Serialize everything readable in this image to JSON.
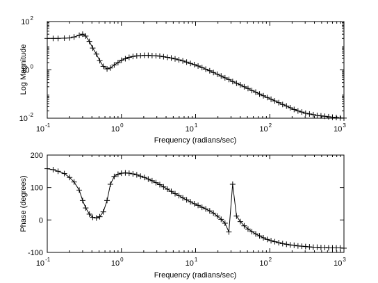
{
  "chart_data": [
    {
      "type": "line",
      "xlabel": "Frequency (radians/sec)",
      "ylabel": "Log Magnitude",
      "xscale": "log",
      "yscale": "log",
      "xlim": [
        0.1,
        1000
      ],
      "ylim": [
        0.01,
        100
      ],
      "x_ticks": [
        {
          "base": "10",
          "exp": "-1",
          "value": 0.1
        },
        {
          "base": "10",
          "exp": "0",
          "value": 1
        },
        {
          "base": "10",
          "exp": "1",
          "value": 10
        },
        {
          "base": "10",
          "exp": "2",
          "value": 100
        },
        {
          "base": "10",
          "exp": "3",
          "value": 1000
        }
      ],
      "y_ticks": [
        {
          "base": "10",
          "exp": "-2",
          "value": 0.01
        },
        {
          "base": "10",
          "exp": "0",
          "value": 1
        },
        {
          "base": "10",
          "exp": "2",
          "value": 100
        }
      ],
      "grid": false,
      "marker": "+",
      "series": [
        {
          "color": "#000000",
          "x": [
            0.1,
            0.12,
            0.14,
            0.17,
            0.2,
            0.23,
            0.27,
            0.3,
            0.33,
            0.37,
            0.41,
            0.46,
            0.51,
            0.57,
            0.64,
            0.71,
            0.8,
            0.9,
            1.0,
            1.13,
            1.27,
            1.43,
            1.61,
            1.81,
            2.04,
            2.3,
            2.59,
            2.92,
            3.29,
            3.7,
            4.17,
            4.7,
            5.29,
            5.96,
            6.72,
            7.57,
            8.53,
            9.6,
            10.8,
            12.2,
            13.7,
            15.5,
            17.4,
            19.6,
            22.1,
            24.9,
            28.1,
            31.6,
            35.6,
            40.1,
            45.2,
            50.9,
            57.4,
            64.6,
            72.8,
            82.0,
            92.4,
            104,
            117,
            132,
            149,
            168,
            189,
            213,
            240,
            270,
            304,
            343,
            386,
            435,
            490,
            552,
            621,
            700,
            789,
            888,
            1000
          ],
          "y": [
            20,
            20,
            20,
            20.5,
            21,
            23,
            27,
            30,
            25,
            15,
            8,
            4.5,
            2.4,
            1.4,
            1.1,
            1.2,
            1.6,
            2.0,
            2.5,
            2.9,
            3.3,
            3.6,
            3.8,
            3.9,
            4.0,
            4.0,
            3.9,
            3.85,
            3.7,
            3.5,
            3.3,
            3.1,
            2.85,
            2.6,
            2.35,
            2.1,
            1.85,
            1.65,
            1.45,
            1.25,
            1.07,
            0.92,
            0.78,
            0.66,
            0.56,
            0.47,
            0.4,
            0.33,
            0.28,
            0.24,
            0.2,
            0.17,
            0.14,
            0.12,
            0.1,
            0.085,
            0.072,
            0.061,
            0.052,
            0.044,
            0.037,
            0.032,
            0.027,
            0.023,
            0.02,
            0.018,
            0.016,
            0.015,
            0.014,
            0.013,
            0.0125,
            0.012,
            0.0115,
            0.011,
            0.0107,
            0.0103,
            0.0101
          ]
        }
      ]
    },
    {
      "type": "line",
      "xlabel": "Frequency (radians/sec)",
      "ylabel": "Phase (degrees)",
      "xscale": "log",
      "yscale": "linear",
      "xlim": [
        0.1,
        1000
      ],
      "ylim": [
        -100,
        200
      ],
      "x_ticks": [
        {
          "base": "10",
          "exp": "-1",
          "value": 0.1
        },
        {
          "base": "10",
          "exp": "0",
          "value": 1
        },
        {
          "base": "10",
          "exp": "1",
          "value": 10
        },
        {
          "base": "10",
          "exp": "2",
          "value": 100
        },
        {
          "base": "10",
          "exp": "3",
          "value": 1000
        }
      ],
      "y_ticks": [
        {
          "label": "-100",
          "value": -100
        },
        {
          "label": "0",
          "value": 0
        },
        {
          "label": "100",
          "value": 100
        },
        {
          "label": "200",
          "value": 200
        }
      ],
      "grid": false,
      "marker": "+",
      "series": [
        {
          "color": "#000000",
          "x": [
            0.1,
            0.12,
            0.14,
            0.17,
            0.2,
            0.23,
            0.27,
            0.3,
            0.33,
            0.37,
            0.41,
            0.46,
            0.51,
            0.57,
            0.64,
            0.71,
            0.8,
            0.9,
            1.0,
            1.13,
            1.27,
            1.43,
            1.61,
            1.81,
            2.04,
            2.3,
            2.59,
            2.92,
            3.29,
            3.7,
            4.17,
            4.7,
            5.29,
            5.96,
            6.72,
            7.57,
            8.53,
            9.6,
            10.8,
            12.2,
            13.7,
            15.5,
            17.4,
            19.6,
            22.1,
            24.9,
            28.1,
            31.6,
            35.6,
            40.1,
            45.2,
            50.9,
            57.4,
            64.6,
            72.8,
            82.0,
            92.4,
            104,
            117,
            132,
            149,
            168,
            189,
            213,
            240,
            270,
            304,
            343,
            386,
            435,
            490,
            552,
            621,
            700,
            789,
            888,
            1000
          ],
          "y": [
            158,
            155,
            150,
            143,
            131,
            117,
            92,
            60,
            37,
            18,
            8,
            6,
            10,
            25,
            60,
            110,
            134,
            141,
            144,
            145,
            144,
            142,
            139,
            135,
            131,
            126,
            121,
            115,
            109,
            102,
            95,
            88,
            81,
            75,
            68,
            62,
            56,
            50,
            45,
            39,
            34,
            28,
            21,
            12,
            2,
            -10,
            -37,
            110,
            12,
            -5,
            -18,
            -28,
            -36,
            -43,
            -49,
            -55,
            -60,
            -64,
            -67,
            -70,
            -73,
            -75,
            -77,
            -78,
            -80,
            -81,
            -82,
            -83,
            -84,
            -84,
            -85,
            -85,
            -86,
            -86,
            -86,
            -86,
            -87
          ]
        }
      ]
    }
  ]
}
